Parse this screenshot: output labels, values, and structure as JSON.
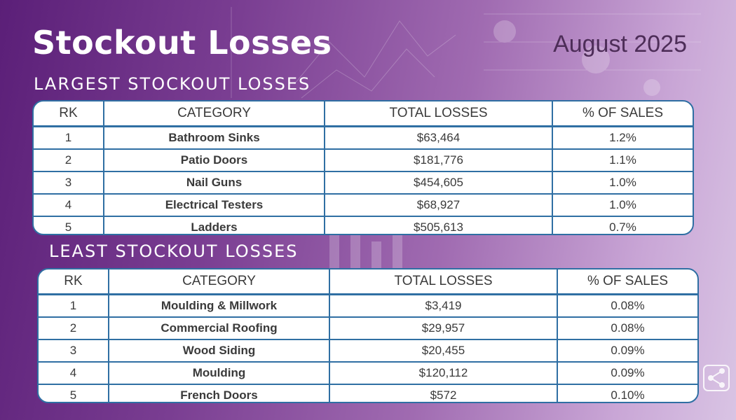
{
  "header": {
    "title": "Stockout Losses",
    "date": "August 2025"
  },
  "columns": [
    "RK",
    "CATEGORY",
    "TOTAL LOSSES",
    "% OF SALES"
  ],
  "largest": {
    "heading": "LARGEST STOCKOUT LOSSES",
    "rows": [
      {
        "rk": "1",
        "category": "Bathroom Sinks",
        "losses": "$63,464",
        "pct": "1.2%"
      },
      {
        "rk": "2",
        "category": "Patio Doors",
        "losses": "$181,776",
        "pct": "1.1%"
      },
      {
        "rk": "3",
        "category": "Nail Guns",
        "losses": "$454,605",
        "pct": "1.0%"
      },
      {
        "rk": "4",
        "category": "Electrical Testers",
        "losses": "$68,927",
        "pct": "1.0%"
      },
      {
        "rk": "5",
        "category": "Ladders",
        "losses": "$505,613",
        "pct": "0.7%"
      }
    ]
  },
  "least": {
    "heading": "LEAST STOCKOUT LOSSES",
    "rows": [
      {
        "rk": "1",
        "category": "Moulding & Millwork",
        "losses": "$3,419",
        "pct": "0.08%"
      },
      {
        "rk": "2",
        "category": "Commercial Roofing",
        "losses": "$29,957",
        "pct": "0.08%"
      },
      {
        "rk": "3",
        "category": "Wood Siding",
        "losses": "$20,455",
        "pct": "0.09%"
      },
      {
        "rk": "4",
        "category": "Moulding",
        "losses": "$120,112",
        "pct": "0.09%"
      },
      {
        "rk": "5",
        "category": "French Doors",
        "losses": "$572",
        "pct": "0.10%"
      }
    ]
  },
  "logo_icon": "network-nodes-icon",
  "colors": {
    "table_border": "#2f6fa3",
    "date_text": "#4d2d58",
    "title_text": "#ffffff"
  }
}
